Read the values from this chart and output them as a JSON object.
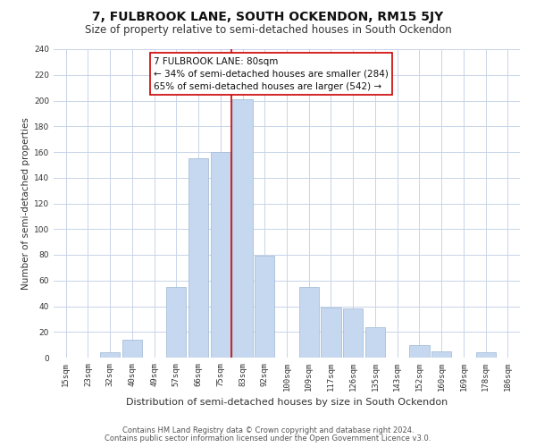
{
  "title": "7, FULBROOK LANE, SOUTH OCKENDON, RM15 5JY",
  "subtitle": "Size of property relative to semi-detached houses in South Ockendon",
  "xlabel": "Distribution of semi-detached houses by size in South Ockendon",
  "ylabel": "Number of semi-detached properties",
  "categories": [
    "15sqm",
    "23sqm",
    "32sqm",
    "40sqm",
    "49sqm",
    "57sqm",
    "66sqm",
    "75sqm",
    "83sqm",
    "92sqm",
    "100sqm",
    "109sqm",
    "117sqm",
    "126sqm",
    "135sqm",
    "143sqm",
    "152sqm",
    "160sqm",
    "169sqm",
    "178sqm",
    "186sqm"
  ],
  "values": [
    0,
    0,
    4,
    14,
    0,
    55,
    155,
    160,
    201,
    79,
    0,
    55,
    39,
    38,
    24,
    0,
    10,
    5,
    0,
    4,
    0
  ],
  "bar_color": "#c5d8f0",
  "bar_edge_color": "#a8bfd8",
  "vline_x_index": 7.5,
  "vline_color": "#cc0000",
  "annotation_line1": "7 FULBROOK LANE: 80sqm",
  "annotation_line2": "← 34% of semi-detached houses are smaller (284)",
  "annotation_line3": "65% of semi-detached houses are larger (542) →",
  "annotation_box_color": "#ffffff",
  "annotation_box_edge": "#cc0000",
  "ylim": [
    0,
    240
  ],
  "yticks": [
    0,
    20,
    40,
    60,
    80,
    100,
    120,
    140,
    160,
    180,
    200,
    220,
    240
  ],
  "footer1": "Contains HM Land Registry data © Crown copyright and database right 2024.",
  "footer2": "Contains public sector information licensed under the Open Government Licence v3.0.",
  "bg_color": "#ffffff",
  "grid_color": "#c8d4e8",
  "title_fontsize": 10,
  "subtitle_fontsize": 8.5,
  "xlabel_fontsize": 8,
  "ylabel_fontsize": 7.5,
  "tick_fontsize": 6.5,
  "annotation_fontsize": 7.5,
  "footer_fontsize": 6
}
